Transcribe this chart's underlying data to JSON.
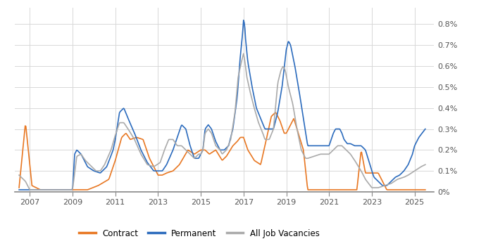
{
  "xlim": [
    2006.3,
    2025.9
  ],
  "ylim": [
    0,
    0.0088
  ],
  "yticks": [
    0,
    0.001,
    0.002,
    0.003,
    0.004,
    0.005,
    0.006,
    0.007,
    0.008
  ],
  "ytick_labels": [
    "0%",
    "0.1%",
    "0.2%",
    "0.3%",
    "0.4%",
    "0.5%",
    "0.6%",
    "0.7%",
    "0.8%"
  ],
  "xticks": [
    2007,
    2009,
    2011,
    2013,
    2015,
    2017,
    2019,
    2021,
    2023,
    2025
  ],
  "legend": [
    "Contract",
    "Permanent",
    "All Job Vacancies"
  ],
  "colors": {
    "contract": "#E87722",
    "permanent": "#2B6BBD",
    "all_vacancies": "#AAAAAA"
  },
  "background_color": "#ffffff",
  "grid_color": "#d8d8d8",
  "line_width": 1.2
}
